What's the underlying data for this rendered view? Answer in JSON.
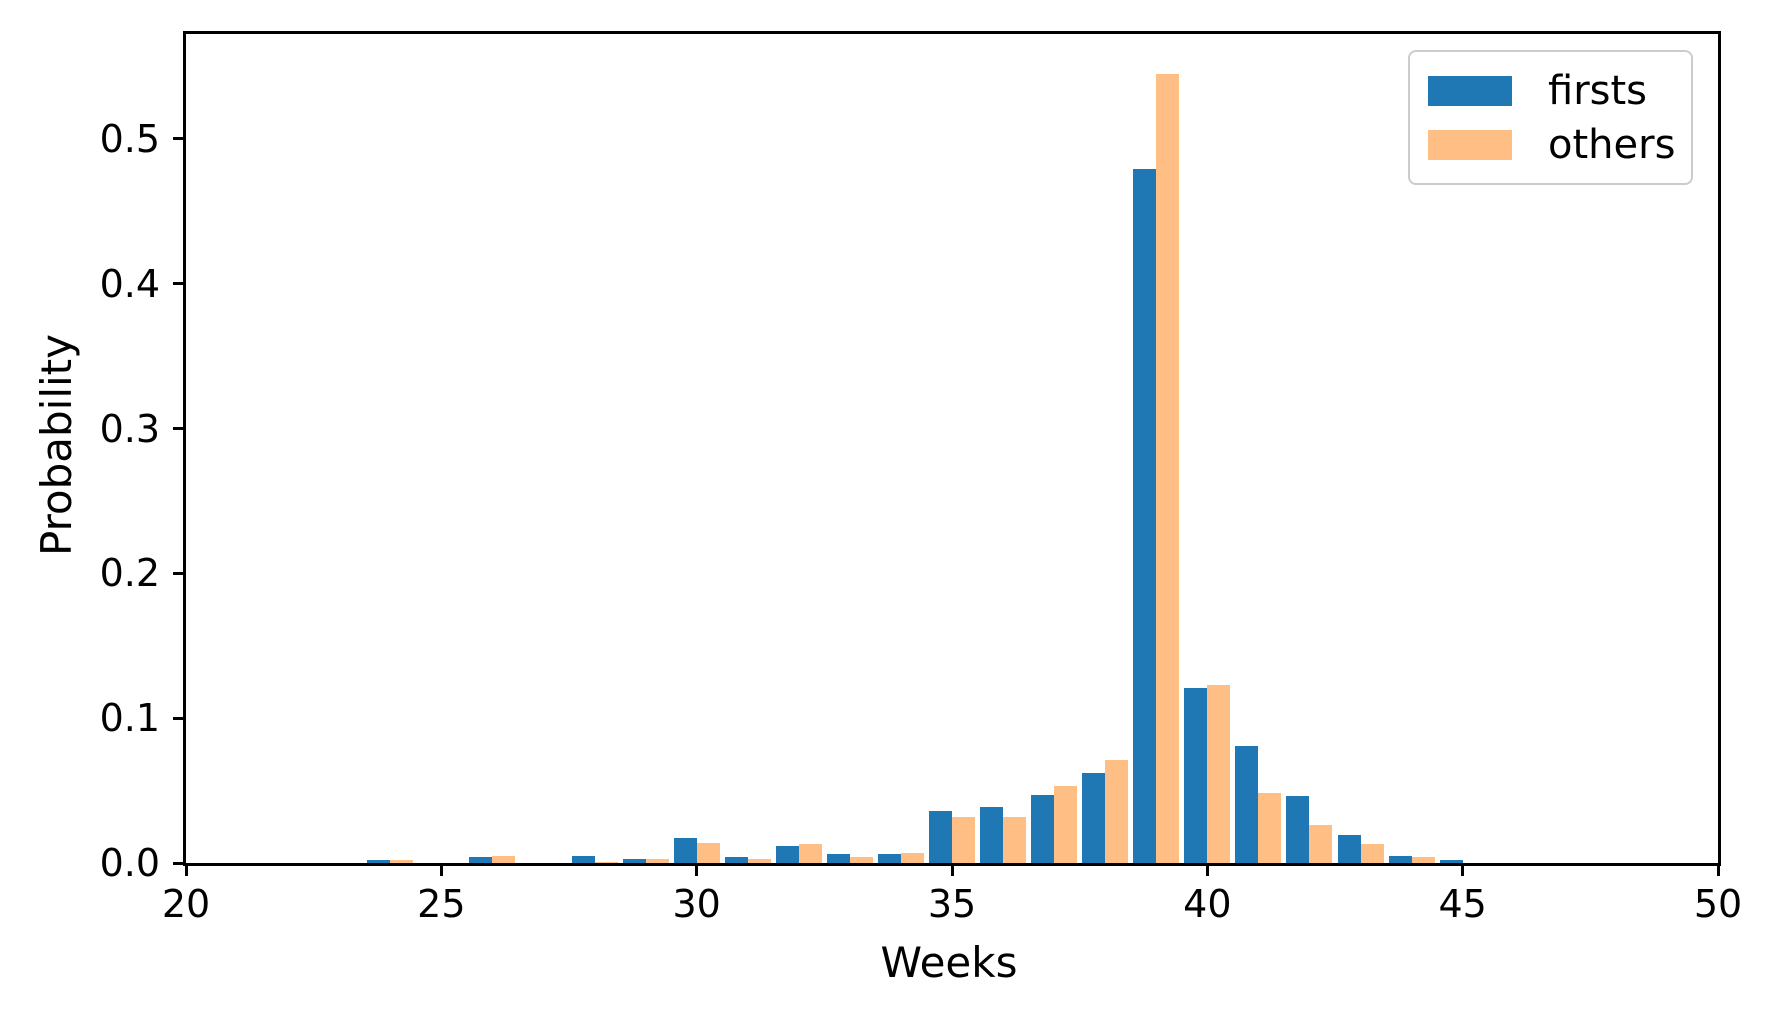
{
  "chart_data": {
    "type": "bar",
    "title": "",
    "xlabel": "Weeks",
    "ylabel": "Probability",
    "x": [
      21,
      22,
      23,
      24,
      25,
      26,
      27,
      28,
      29,
      30,
      31,
      32,
      33,
      34,
      35,
      36,
      37,
      38,
      39,
      40,
      41,
      42,
      43,
      44,
      45
    ],
    "series": [
      {
        "name": "firsts",
        "color": "#1f77b4",
        "values": [
          0,
          0,
          0,
          0.002,
          0,
          0.004,
          0,
          0.005,
          0.003,
          0.017,
          0.004,
          0.012,
          0.006,
          0.006,
          0.036,
          0.039,
          0.047,
          0.062,
          0.479,
          0.121,
          0.081,
          0.046,
          0.019,
          0.005,
          0.002
        ]
      },
      {
        "name": "others",
        "color": "#ffbe84",
        "values": [
          0,
          0,
          0,
          0.002,
          0,
          0.005,
          0,
          0.001,
          0.003,
          0.014,
          0.003,
          0.013,
          0.004,
          0.007,
          0.032,
          0.032,
          0.053,
          0.071,
          0.545,
          0.123,
          0.048,
          0.026,
          0.013,
          0.004,
          0
        ]
      }
    ],
    "bar_width": 0.45,
    "xlim": [
      20,
      50
    ],
    "ylim": [
      0,
      0.5724
    ],
    "xticks": [
      20,
      25,
      30,
      35,
      40,
      45,
      50
    ],
    "yticks": [
      0.0,
      0.1,
      0.2,
      0.3,
      0.4,
      0.5
    ],
    "grid": false,
    "legend_position": "top-right",
    "legend_entries": [
      "firsts",
      "others"
    ]
  }
}
